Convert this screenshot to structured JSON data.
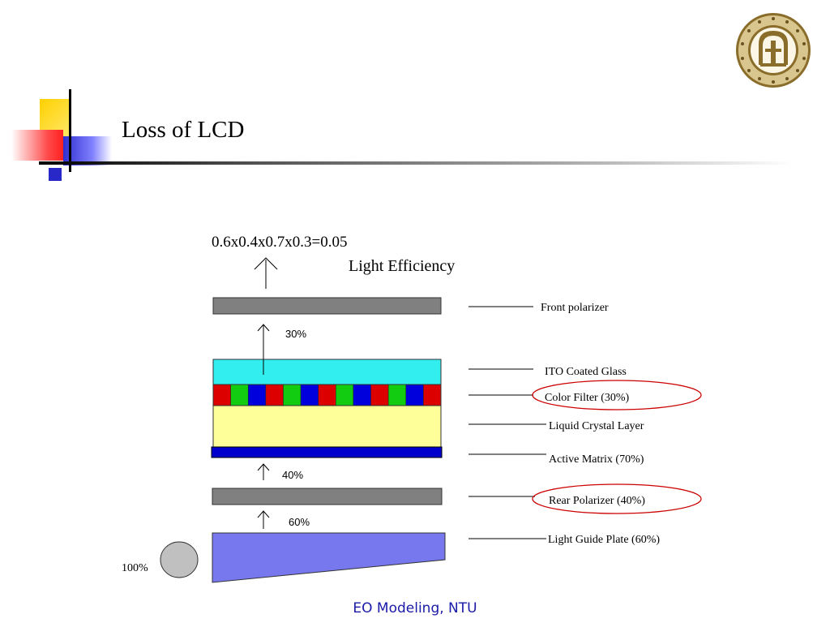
{
  "slide": {
    "title": "Loss of LCD",
    "footer": "EO Modeling, NTU"
  },
  "diagram": {
    "formula": "0.6x0.4x0.7x0.3=0.05",
    "heading": "Light Efficiency",
    "source_percent": "100%",
    "step_percents": [
      "60%",
      "40%",
      "30%"
    ],
    "layers": [
      {
        "label": "Front polarizer",
        "color": "#808080",
        "highlighted": false
      },
      {
        "label": "ITO Coated Glass",
        "color": "#33eeee",
        "highlighted": false
      },
      {
        "label": "Color Filter (30%)",
        "color": "#dd0000",
        "highlighted": true
      },
      {
        "label": "Liquid Crystal Layer",
        "color": "#ffff99",
        "highlighted": false
      },
      {
        "label": "Active Matrix  (70%)",
        "color": "#0000cc",
        "highlighted": false
      },
      {
        "label": "Rear Polarizer (40%)",
        "color": "#808080",
        "highlighted": true
      },
      {
        "label": "Light Guide Plate (60%)",
        "color": "#7777ee",
        "highlighted": false
      }
    ],
    "color_filter_cells": [
      "red",
      "green",
      "blue",
      "red",
      "green",
      "blue",
      "red",
      "green",
      "blue",
      "red",
      "green",
      "blue",
      "red"
    ],
    "cell_colors": {
      "red": "#dd0000",
      "green": "#11cc11",
      "blue": "#0000dd"
    },
    "highlight_color": "#cc0000"
  }
}
